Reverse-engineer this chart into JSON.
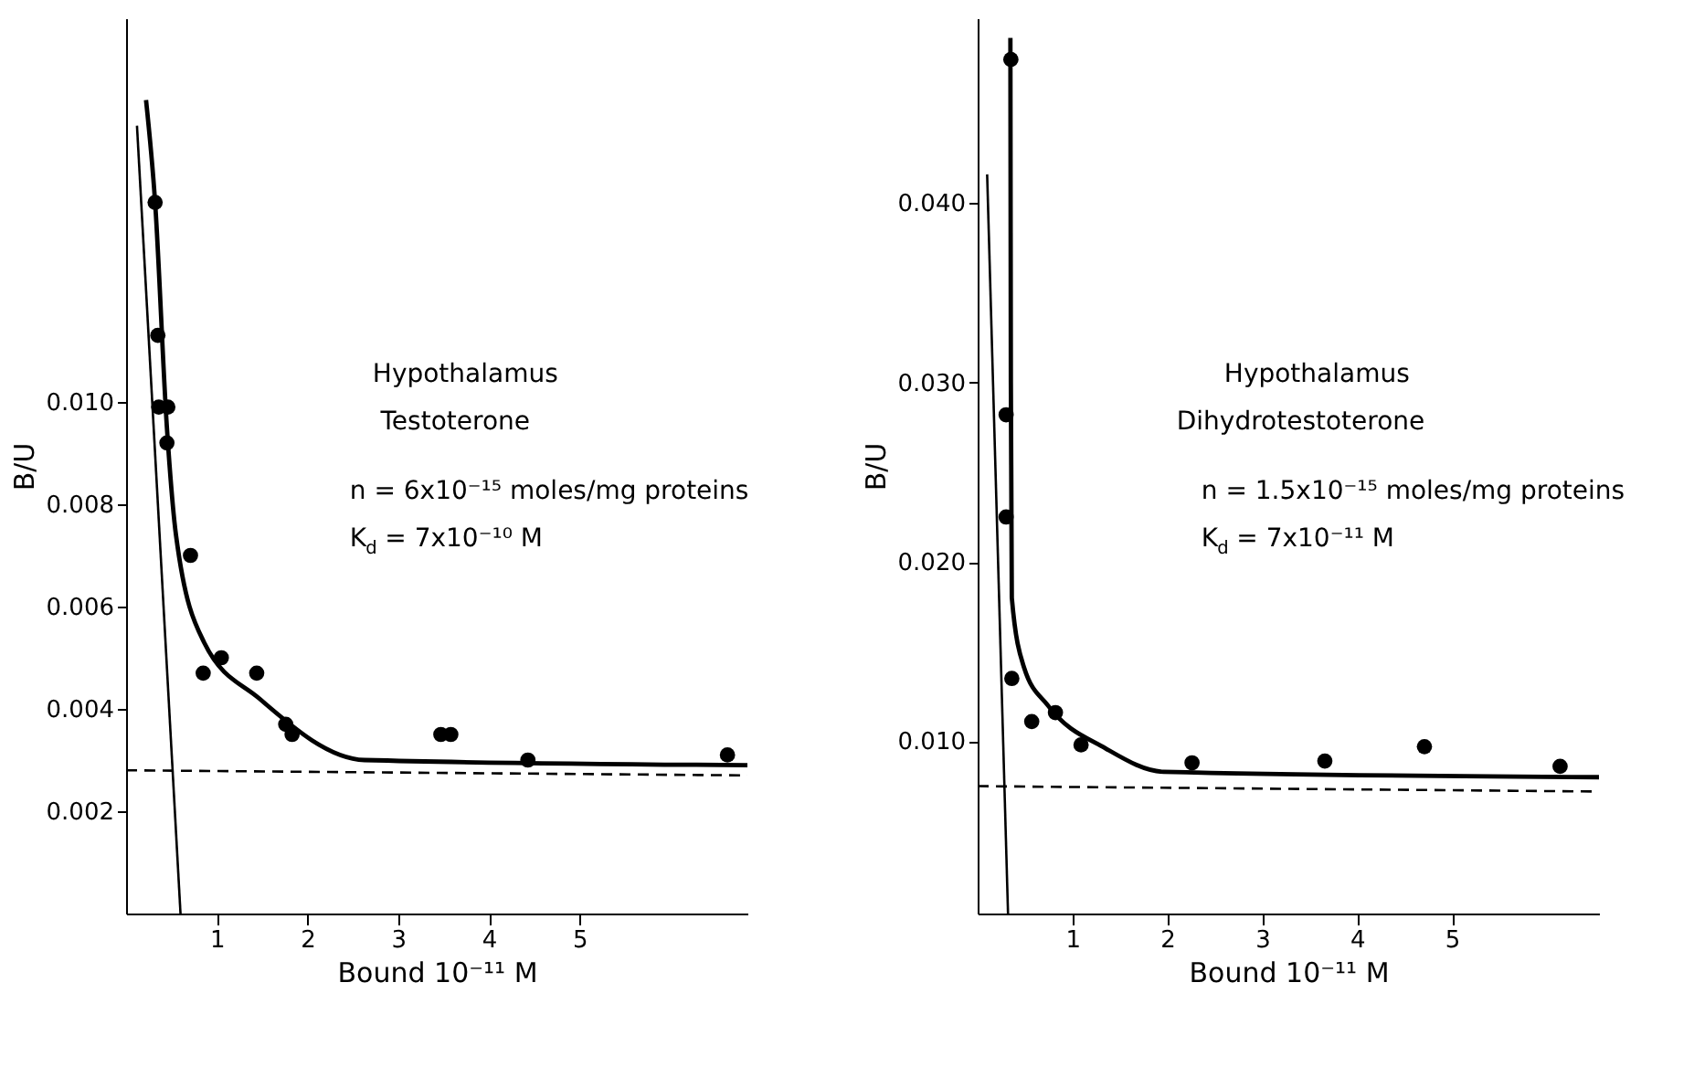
{
  "chart_data": [
    {
      "type": "scatter",
      "xlabel": "Bound 10⁻¹¹ M",
      "ylabel": "B/U",
      "xlim": [
        0,
        6.85
      ],
      "ylim": [
        0,
        0.0175
      ],
      "xticks": [
        1,
        2,
        3,
        4,
        5
      ],
      "yticks": [
        {
          "value": 0.002,
          "label": "0.002"
        },
        {
          "value": 0.004,
          "label": "0.004"
        },
        {
          "value": 0.006,
          "label": "0.006"
        },
        {
          "value": 0.008,
          "label": "0.008"
        },
        {
          "value": 0.01,
          "label": "0.010"
        }
      ],
      "grid": false,
      "annotations": [
        "Hypothalamus",
        "Testoterone",
        "n = 6x10⁻¹⁵ moles/mg proteins",
        "K$_{d}$ = 7x10⁻¹⁰ M"
      ],
      "series": [
        {
          "color": "#000000",
          "marker": "circle",
          "x": [
            0.32,
            0.35,
            0.36,
            0.46,
            0.45,
            0.71,
            0.85,
            1.05,
            1.44,
            1.76,
            1.83,
            3.47,
            3.58,
            4.43,
            6.63
          ],
          "values": [
            0.0139,
            0.0113,
            0.0099,
            0.0099,
            0.0092,
            0.007,
            0.0047,
            0.005,
            0.0047,
            0.0037,
            0.0035,
            0.0035,
            0.0035,
            0.003,
            0.0031
          ]
        },
        {
          "type": "line",
          "color": "#000000",
          "line_style": "solid",
          "marker": "none",
          "x": [
            0.22,
            0.32,
            0.45,
            0.55,
            0.86,
            1.47,
            2.63,
            6.85
          ],
          "values": [
            0.0159,
            0.0139,
            0.0095,
            0.0074,
            0.0053,
            0.0042,
            0.003,
            0.0029
          ]
        },
        {
          "type": "line",
          "color": "#000000",
          "line_style": "solid",
          "marker": "none",
          "x": [
            0.12,
            0.6
          ],
          "values": [
            0.0154,
            0
          ]
        },
        {
          "type": "line",
          "color": "#000000",
          "line_style": "dashed",
          "marker": "none",
          "x": [
            0,
            6.85
          ],
          "values": [
            0.0028,
            0.0027
          ]
        }
      ]
    },
    {
      "type": "scatter",
      "xlabel": "Bound 10⁻¹¹ M",
      "ylabel": "B/U",
      "xlim": [
        0,
        6.55
      ],
      "ylim": [
        0.0004,
        0.0503
      ],
      "xticks": [
        1,
        2,
        3,
        4,
        5
      ],
      "yticks": [
        {
          "value": 0.01,
          "label": "0.010"
        },
        {
          "value": 0.02,
          "label": "0.020"
        },
        {
          "value": 0.03,
          "label": "0.030"
        },
        {
          "value": 0.04,
          "label": "0.040"
        }
      ],
      "grid": false,
      "annotations": [
        "Hypothalamus",
        "Dihydrotestoterone",
        "n = 1.5x10⁻¹⁵ moles/mg proteins",
        "K$_{d}$ = 7x10⁻¹¹ M"
      ],
      "series": [
        {
          "color": "#000000",
          "marker": "circle",
          "x": [
            0.35,
            0.3,
            0.3,
            0.36,
            0.57,
            0.82,
            1.09,
            2.26,
            3.66,
            4.71,
            6.14
          ],
          "values": [
            0.048,
            0.0282,
            0.0225,
            0.0135,
            0.0111,
            0.0116,
            0.0098,
            0.0088,
            0.0089,
            0.0097,
            0.0086
          ]
        },
        {
          "type": "line",
          "color": "#000000",
          "line_style": "solid",
          "marker": "none",
          "x": [
            0.345,
            0.35,
            0.36,
            0.49,
            0.74,
            1.35,
            1.96,
            6.55
          ],
          "values": [
            0.0492,
            0.03,
            0.018,
            0.0141,
            0.012,
            0.0096,
            0.0083,
            0.008
          ]
        },
        {
          "type": "line",
          "color": "#000000",
          "line_style": "solid",
          "marker": "none",
          "x": [
            0.1,
            0.32
          ],
          "values": [
            0.0416,
            0.0004
          ]
        },
        {
          "type": "line",
          "color": "#000000",
          "line_style": "dashed",
          "marker": "none",
          "x": [
            0,
            6.55
          ],
          "values": [
            0.0075,
            0.0072
          ]
        }
      ]
    }
  ]
}
